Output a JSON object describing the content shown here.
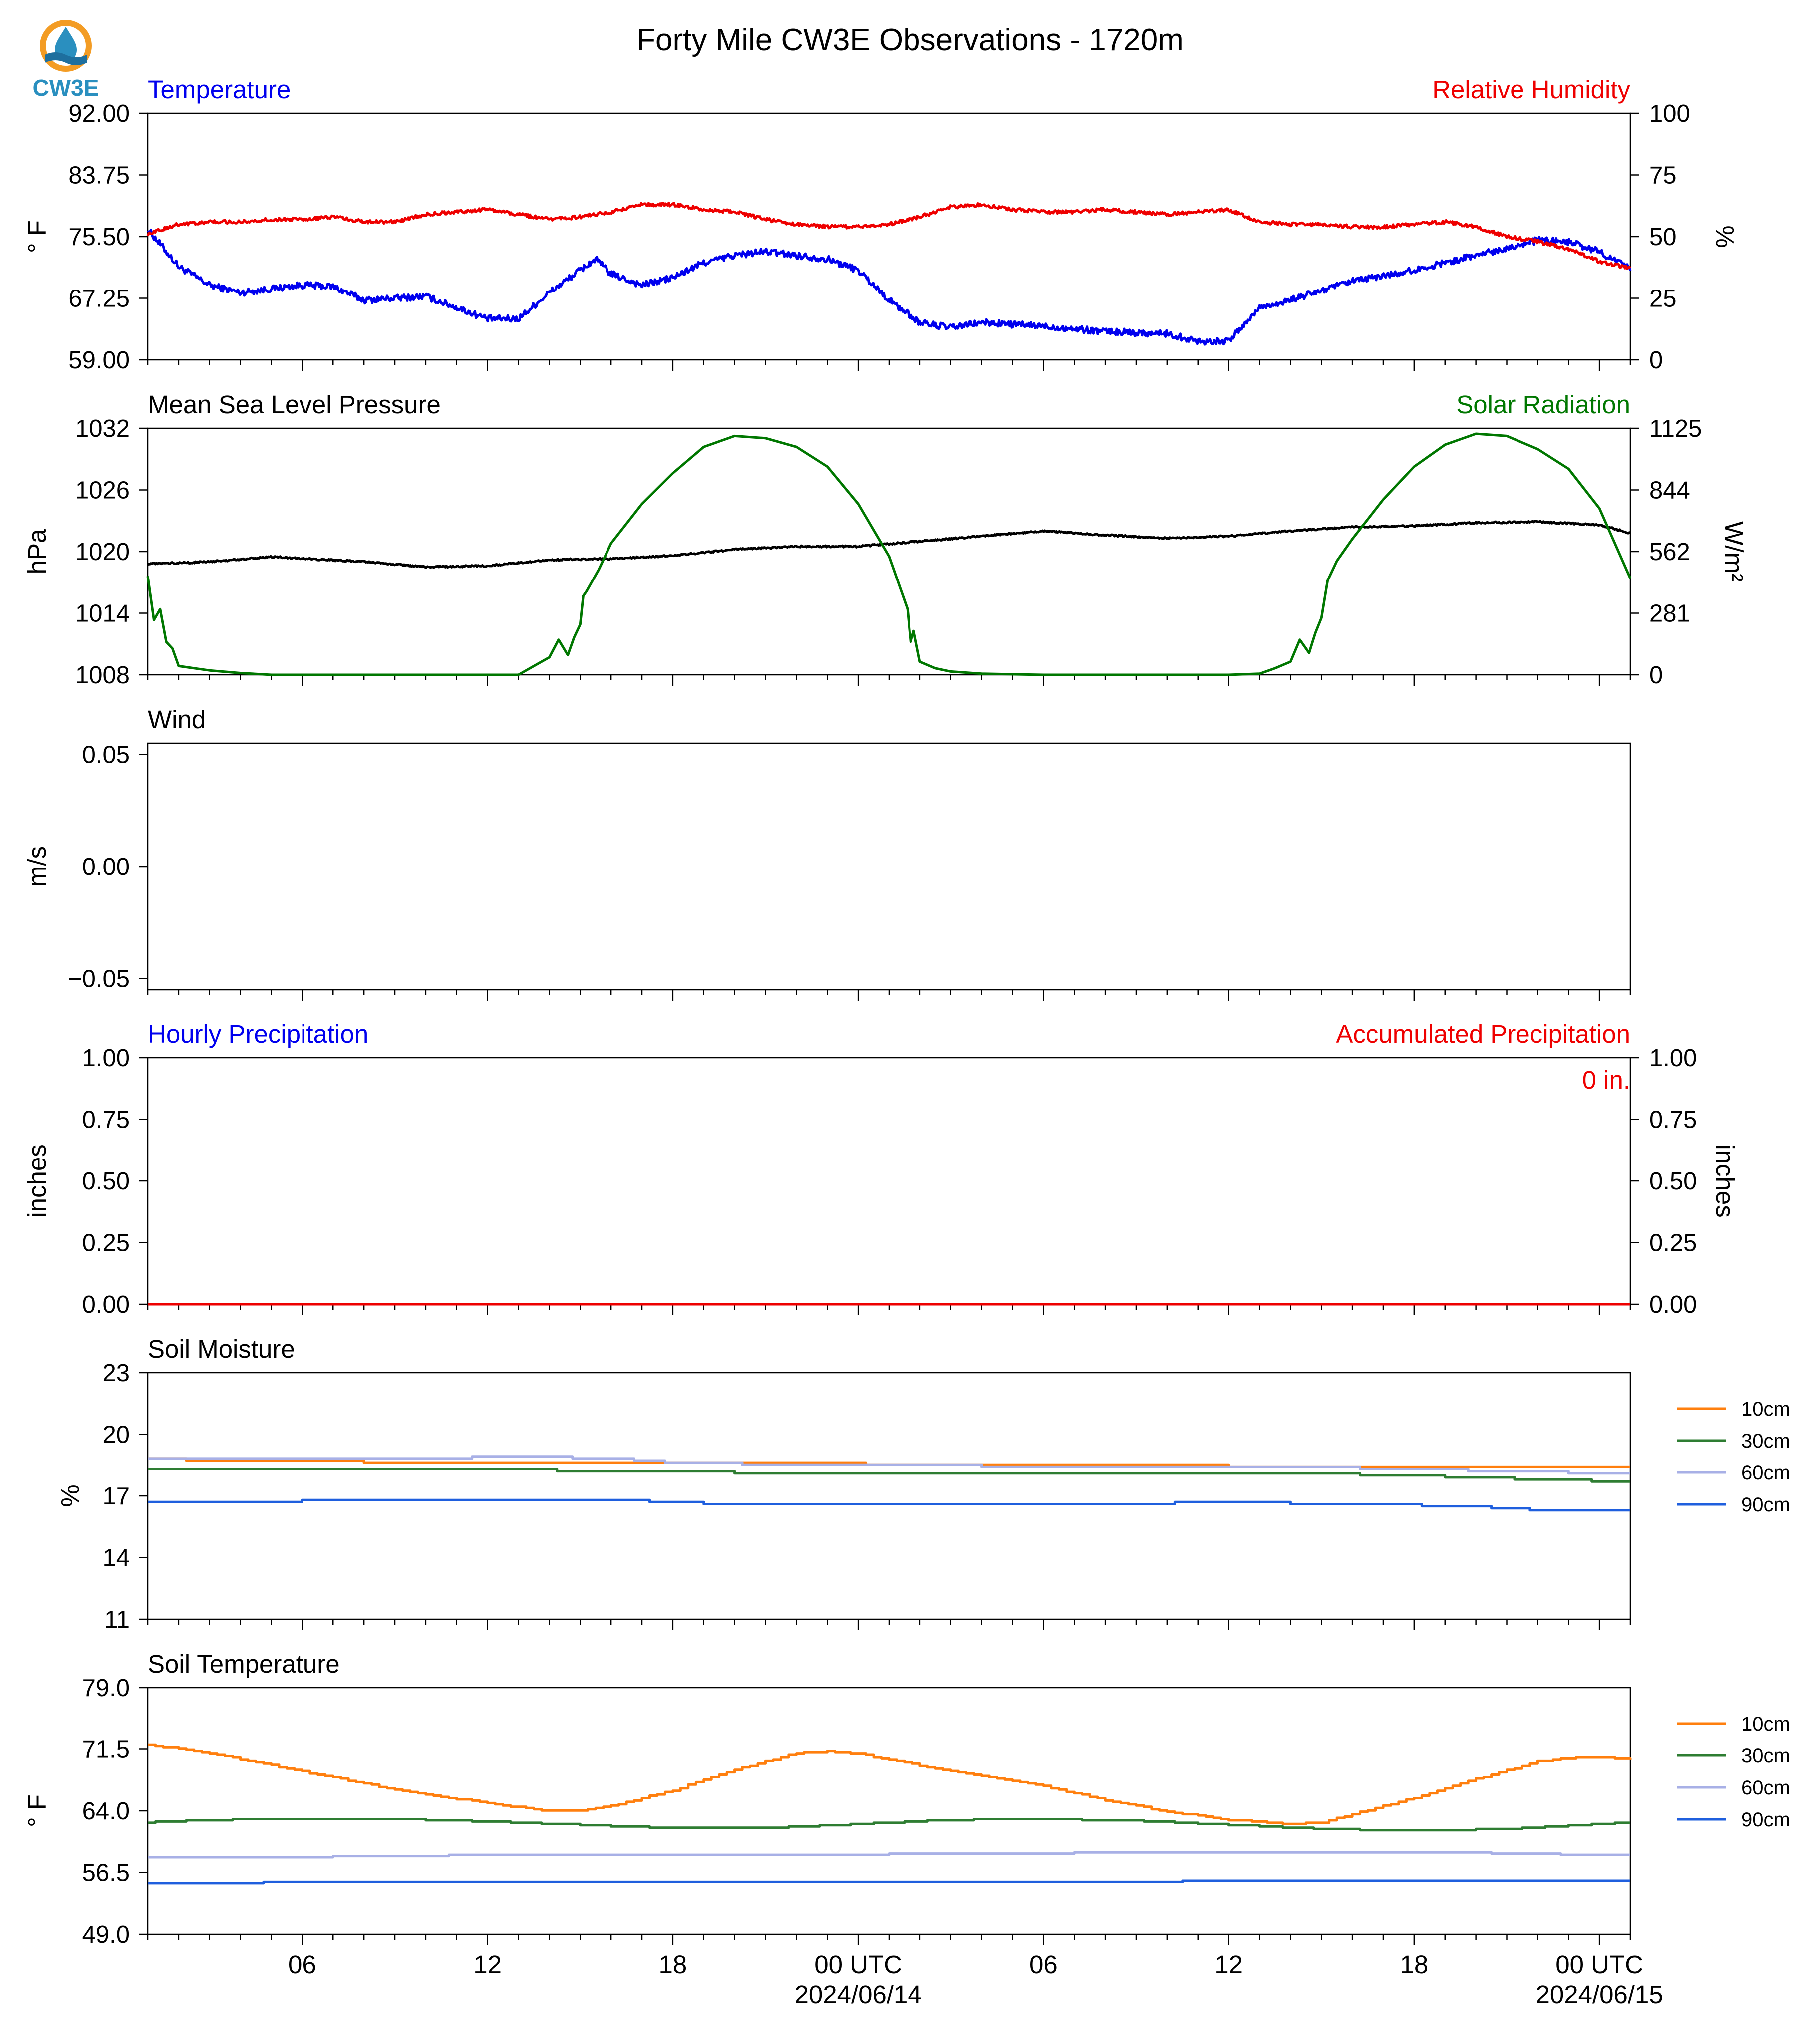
{
  "title": "Forty Mile CW3E Observations - 1720m",
  "logo": {
    "text": "CW3E",
    "colors": {
      "ring": "#F39C24",
      "drop": "#2A8FBF",
      "wave": "#1E6F9E"
    }
  },
  "x_axis": {
    "tick_labels": [
      "06",
      "12",
      "18",
      "00 UTC",
      "06",
      "12",
      "18",
      "00 UTC"
    ],
    "tick_hours": [
      6,
      12,
      18,
      24,
      30,
      36,
      42,
      48
    ],
    "date_labels": [
      "2024/06/14",
      "2024/06/15"
    ],
    "date_hours": [
      24,
      48
    ],
    "start_hour": 1,
    "end_hour": 49
  },
  "chart_data": [
    {
      "type": "line",
      "left_label": "Temperature",
      "left_label_color": "#0000EE",
      "right_label": "Relative Humidity",
      "right_label_color": "#EE0000",
      "ylabel": "° F",
      "ylabel2": "%",
      "ylim": [
        59,
        92
      ],
      "ylim2": [
        0,
        100
      ],
      "yticks": [
        "92.00",
        "83.75",
        "75.50",
        "67.25",
        "59.00"
      ],
      "yticks2": [
        "100",
        "75",
        "50",
        "25",
        "0"
      ],
      "series": [
        {
          "axis": "left",
          "color": "#0000EE",
          "noise": 0.45,
          "x": [
            1,
            2,
            3,
            4,
            6,
            7,
            8,
            10,
            11,
            12,
            13,
            14,
            15,
            15.5,
            16,
            17,
            18,
            19,
            20,
            21,
            22,
            23,
            24,
            25,
            26,
            27,
            28,
            30,
            32,
            34,
            35,
            36,
            37,
            38,
            40,
            42,
            44,
            46,
            47,
            48,
            49
          ],
          "y": [
            76.5,
            71.5,
            69.0,
            68.0,
            69.0,
            68.8,
            67.0,
            67.5,
            66.0,
            64.5,
            64.5,
            68.0,
            71.0,
            72.5,
            70.5,
            69.0,
            70.0,
            72.0,
            73.0,
            73.5,
            73.0,
            72.5,
            71.0,
            67.0,
            64.0,
            63.3,
            64.0,
            63.5,
            62.8,
            62.5,
            61.5,
            61.5,
            66.0,
            67.0,
            69.5,
            71.0,
            73.0,
            75.0,
            74.8,
            73.5,
            71.2
          ]
        },
        {
          "axis": "right",
          "color": "#EE0000",
          "noise": 0.7,
          "x": [
            1,
            2,
            3,
            4,
            5,
            6,
            7,
            8,
            9,
            10,
            11,
            12,
            13,
            14,
            15,
            16,
            17,
            18,
            19,
            20,
            21,
            22,
            23,
            24,
            25,
            26,
            27,
            28,
            29,
            30,
            31,
            32,
            33,
            34,
            35,
            36,
            37,
            38,
            39,
            40,
            41,
            42,
            43,
            44,
            45,
            46,
            47,
            48,
            49
          ],
          "y": [
            51,
            55,
            56,
            56,
            57,
            57,
            58,
            56,
            56,
            59,
            60,
            61,
            59,
            57,
            58,
            60,
            63,
            63,
            61,
            60,
            57,
            55,
            54,
            54,
            55,
            58,
            62,
            63,
            61,
            60,
            60,
            61,
            60,
            59,
            60,
            61,
            56,
            55,
            55,
            54,
            54,
            55,
            56,
            54,
            50,
            48,
            45,
            40,
            37
          ]
        }
      ]
    },
    {
      "type": "line",
      "left_label": "Mean Sea Level Pressure",
      "left_label_color": "#000000",
      "right_label": "Solar Radiation",
      "right_label_color": "#007700",
      "ylabel": "hPa",
      "ylabel2": "W/m²",
      "ylim": [
        1008,
        1032
      ],
      "ylim2": [
        0,
        1125
      ],
      "yticks": [
        "1032",
        "1026",
        "1020",
        "1014",
        "1008"
      ],
      "yticks2": [
        "1125",
        "844",
        "562",
        "281",
        "0"
      ],
      "series": [
        {
          "axis": "left",
          "color": "#000000",
          "noise": 0.08,
          "x": [
            1,
            3,
            5,
            8,
            10,
            12,
            14,
            16,
            18,
            20,
            22,
            24,
            26,
            28,
            30,
            32,
            34,
            36,
            38,
            40,
            42,
            44,
            46,
            48,
            49
          ],
          "y": [
            1018.8,
            1019.0,
            1019.5,
            1019.0,
            1018.5,
            1018.6,
            1019.2,
            1019.3,
            1019.6,
            1020.2,
            1020.5,
            1020.5,
            1021.0,
            1021.5,
            1022.0,
            1021.6,
            1021.3,
            1021.5,
            1022.0,
            1022.4,
            1022.5,
            1022.8,
            1022.9,
            1022.6,
            1021.8
          ]
        },
        {
          "axis": "right",
          "color": "#007700",
          "noise": 0,
          "x": [
            1,
            1.2,
            1.4,
            1.6,
            1.8,
            2,
            2.5,
            3,
            4,
            5,
            10,
            13,
            13.5,
            14,
            14.3,
            14.6,
            14.8,
            15,
            15.1,
            15.2,
            15.4,
            15.6,
            15.8,
            16,
            17,
            18,
            19,
            20,
            21,
            22,
            23,
            24,
            25,
            25.6,
            25.7,
            25.8,
            26,
            26.5,
            27,
            28,
            30,
            35,
            36,
            37,
            37.5,
            38,
            38.3,
            38.6,
            38.8,
            39,
            39.2,
            39.5,
            40,
            41,
            42,
            43,
            44,
            45,
            46,
            47,
            48,
            49
          ],
          "y": [
            450,
            250,
            300,
            150,
            120,
            40,
            30,
            20,
            8,
            0,
            0,
            0,
            40,
            80,
            160,
            90,
            170,
            230,
            360,
            380,
            430,
            480,
            540,
            600,
            780,
            920,
            1040,
            1090,
            1080,
            1040,
            950,
            780,
            540,
            300,
            150,
            200,
            60,
            30,
            15,
            5,
            0,
            0,
            0,
            5,
            30,
            60,
            160,
            100,
            190,
            260,
            430,
            520,
            620,
            800,
            950,
            1050,
            1100,
            1090,
            1030,
            940,
            760,
            440
          ]
        }
      ]
    },
    {
      "type": "line",
      "left_label": "Wind",
      "left_label_color": "#000000",
      "right_label": "",
      "right_label_color": "#000000",
      "ylabel": "m/s",
      "ylabel2": "",
      "ylim": [
        -0.055,
        0.055
      ],
      "ylim2": null,
      "yticks": [
        "0.05",
        "0.00",
        "−0.05"
      ],
      "yticks2": [],
      "ytick_values": [
        0.05,
        0.0,
        -0.05
      ],
      "series": []
    },
    {
      "type": "line",
      "left_label": "Hourly Precipitation",
      "left_label_color": "#0000EE",
      "right_label": "Accumulated Precipitation",
      "right_label_color": "#EE0000",
      "ylabel": "inches",
      "ylabel2": "inches",
      "ylim": [
        0,
        1
      ],
      "ylim2": [
        0,
        1
      ],
      "yticks": [
        "1.00",
        "0.75",
        "0.50",
        "0.25",
        "0.00"
      ],
      "yticks2": [
        "1.00",
        "0.75",
        "0.50",
        "0.25",
        "0.00"
      ],
      "annotation": "0 in.",
      "annotation_color": "#EE0000",
      "series": [
        {
          "axis": "left",
          "color": "#EE0000",
          "noise": 0,
          "x": [
            1,
            49
          ],
          "y": [
            0,
            0
          ]
        }
      ]
    },
    {
      "type": "line",
      "left_label": "Soil Moisture",
      "left_label_color": "#000000",
      "ylabel": "%",
      "ylim": [
        11,
        23
      ],
      "yticks": [
        "23",
        "20",
        "17",
        "14",
        "11"
      ],
      "legend": [
        "10cm",
        "30cm",
        "60cm",
        "90cm"
      ],
      "legend_position": "right",
      "series": [
        {
          "name": "10cm",
          "color": "#FF7F0E",
          "step": 0.1,
          "x": [
            1,
            3,
            6,
            10,
            14,
            18,
            22,
            26,
            30,
            34,
            38,
            42,
            46,
            49
          ],
          "y": [
            18.8,
            18.7,
            18.7,
            18.6,
            18.6,
            18.6,
            18.6,
            18.5,
            18.5,
            18.5,
            18.4,
            18.4,
            18.4,
            18.4
          ]
        },
        {
          "name": "30cm",
          "color": "#2E7D32",
          "step": 0.1,
          "x": [
            1,
            4,
            8,
            12,
            16,
            18,
            22,
            26,
            30,
            34,
            38,
            42,
            44,
            46,
            49
          ],
          "y": [
            18.3,
            18.3,
            18.3,
            18.3,
            18.2,
            18.2,
            18.1,
            18.1,
            18.1,
            18.1,
            18.1,
            18.0,
            17.9,
            17.8,
            17.7
          ]
        },
        {
          "name": "60cm",
          "color": "#A8B0E6",
          "step": 0.1,
          "x": [
            1,
            4,
            8,
            10,
            13,
            16,
            18,
            22,
            26,
            30,
            34,
            38,
            42,
            45,
            49
          ],
          "y": [
            18.8,
            18.8,
            18.8,
            18.8,
            18.9,
            18.8,
            18.6,
            18.5,
            18.5,
            18.4,
            18.4,
            18.4,
            18.3,
            18.2,
            18.1
          ]
        },
        {
          "name": "90cm",
          "color": "#1F5FDE",
          "step": 0.1,
          "x": [
            1,
            4,
            8,
            12,
            16,
            18,
            20,
            24,
            28,
            32,
            36,
            40,
            44,
            46,
            49
          ],
          "y": [
            16.7,
            16.7,
            16.8,
            16.8,
            16.8,
            16.7,
            16.6,
            16.6,
            16.6,
            16.6,
            16.7,
            16.6,
            16.5,
            16.3,
            16.3
          ]
        }
      ]
    },
    {
      "type": "line",
      "left_label": "Soil Temperature",
      "left_label_color": "#000000",
      "ylabel": "° F",
      "ylim": [
        49,
        79
      ],
      "yticks": [
        "79.0",
        "71.5",
        "64.0",
        "56.5",
        "49.0"
      ],
      "legend": [
        "10cm",
        "30cm",
        "60cm",
        "90cm"
      ],
      "legend_position": "right",
      "series": [
        {
          "name": "10cm",
          "color": "#FF7F0E",
          "step": 0.15,
          "x": [
            1,
            3,
            6,
            9,
            12,
            14,
            15,
            16,
            18,
            20,
            22,
            23,
            24,
            26,
            28,
            30,
            32,
            34,
            36,
            38,
            39,
            40,
            42,
            44,
            46,
            47,
            48,
            49
          ],
          "y": [
            72.0,
            71.0,
            68.8,
            66.6,
            64.9,
            64.0,
            64.1,
            64.6,
            66.5,
            69.0,
            71.0,
            71.2,
            70.9,
            69.5,
            68.2,
            67.0,
            65.3,
            63.9,
            62.9,
            62.4,
            62.6,
            63.6,
            65.6,
            67.9,
            70.0,
            70.4,
            70.5,
            70.2
          ]
        },
        {
          "name": "30cm",
          "color": "#2E7D32",
          "step": 0.15,
          "x": [
            1,
            3,
            6,
            9,
            12,
            15,
            18,
            21,
            24,
            27,
            30,
            33,
            36,
            39,
            42,
            45,
            47,
            49
          ],
          "y": [
            62.6,
            62.9,
            63.0,
            63.0,
            62.7,
            62.3,
            61.9,
            61.9,
            62.4,
            62.9,
            63.0,
            62.8,
            62.3,
            61.8,
            61.6,
            61.8,
            62.2,
            62.6
          ]
        },
        {
          "name": "60cm",
          "color": "#A8B0E6",
          "step": 0.15,
          "x": [
            1,
            6,
            10,
            12,
            16,
            20,
            24,
            28,
            32,
            36,
            40,
            44,
            47,
            49
          ],
          "y": [
            58.4,
            58.4,
            58.5,
            58.7,
            58.7,
            58.7,
            58.7,
            58.8,
            58.9,
            58.9,
            58.9,
            58.9,
            58.7,
            58.7
          ]
        },
        {
          "name": "90cm",
          "color": "#1F5FDE",
          "step": 0.15,
          "x": [
            1,
            6,
            10,
            14,
            18,
            22,
            26,
            30,
            34,
            36,
            38,
            42,
            46,
            49
          ],
          "y": [
            55.2,
            55.3,
            55.3,
            55.4,
            55.4,
            55.4,
            55.4,
            55.4,
            55.4,
            55.5,
            55.5,
            55.5,
            55.5,
            55.5
          ]
        }
      ]
    }
  ]
}
